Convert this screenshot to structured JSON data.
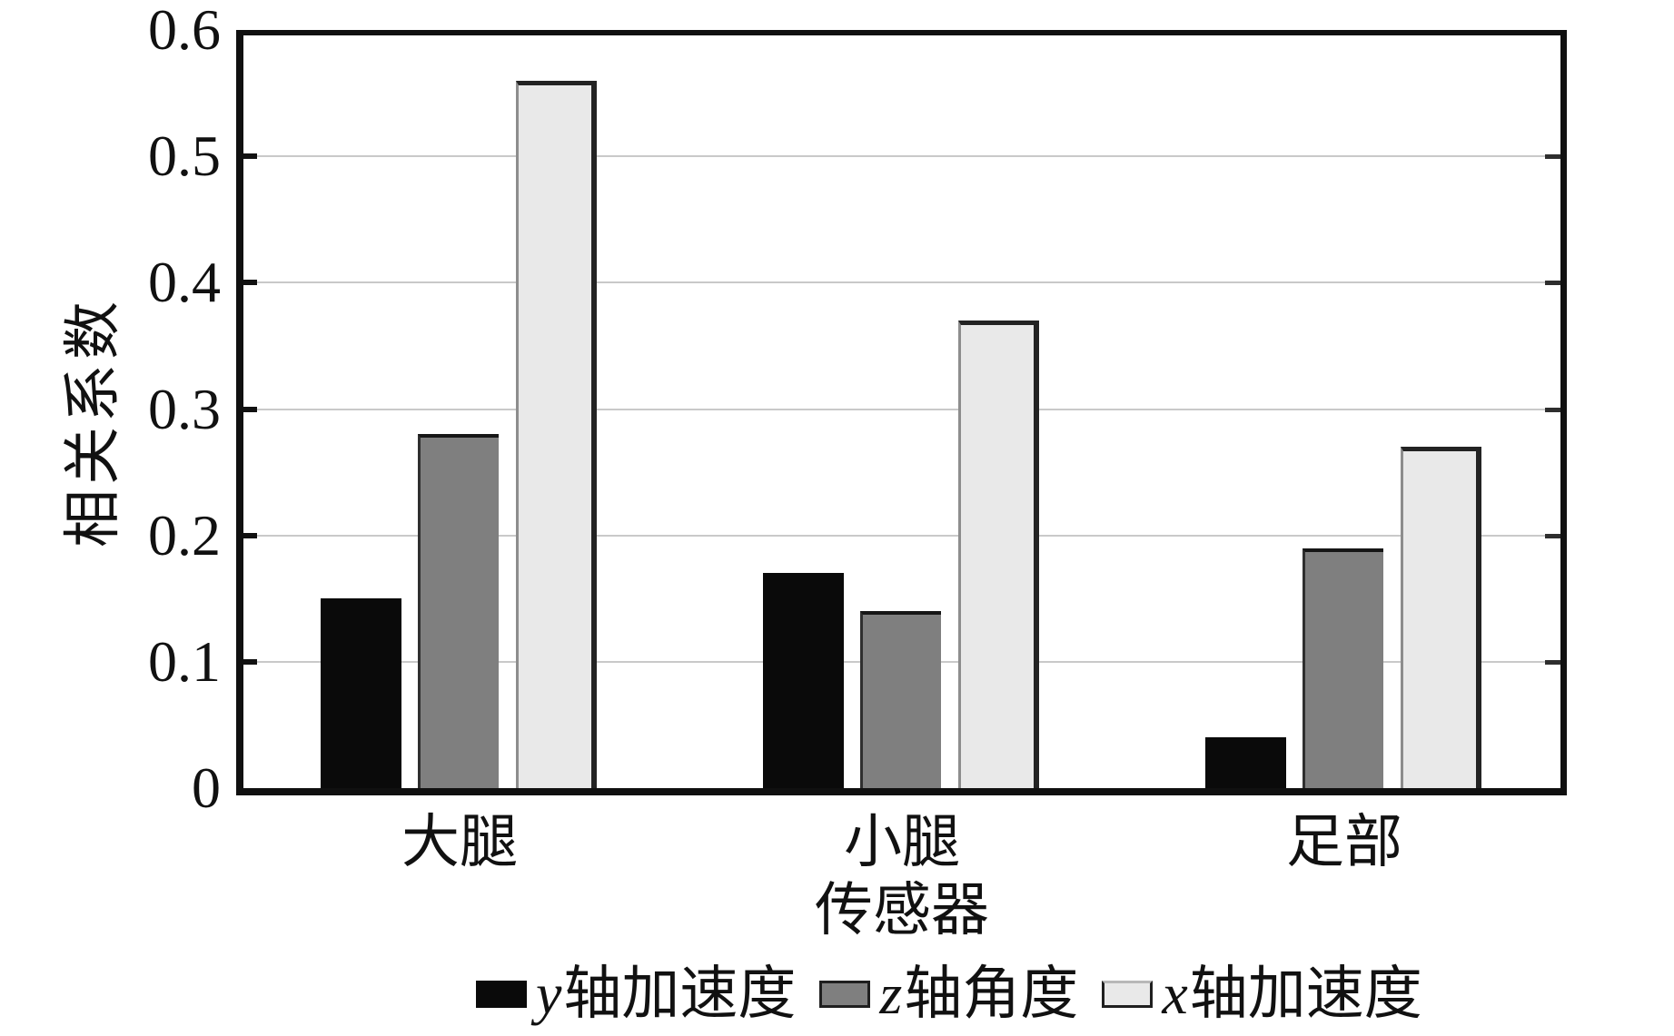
{
  "chart_data": {
    "type": "bar",
    "title": "",
    "ylabel": "相关系数",
    "xlabel": "传感器",
    "categories": [
      "大腿",
      "小腿",
      "足部"
    ],
    "series": [
      {
        "name": "y轴加速度",
        "var": "y",
        "rest": "轴加速度",
        "color": "#0a0a0a",
        "values": [
          0.15,
          0.17,
          0.04
        ]
      },
      {
        "name": "z轴角度",
        "var": "z",
        "rest": "轴角度",
        "color": "#7f7f7f",
        "values": [
          0.28,
          0.14,
          0.19
        ]
      },
      {
        "name": "x轴加速度",
        "var": "x",
        "rest": "轴加速度",
        "color": "#e9e9e9",
        "values": [
          0.56,
          0.37,
          0.27
        ]
      }
    ],
    "ylim": [
      0,
      0.6
    ],
    "y_ticks": [
      {
        "value": 0,
        "label": "0"
      },
      {
        "value": 0.1,
        "label": "0.1"
      },
      {
        "value": 0.2,
        "label": "0.2"
      },
      {
        "value": 0.3,
        "label": "0.3"
      },
      {
        "value": 0.4,
        "label": "0.4"
      },
      {
        "value": 0.5,
        "label": "0.5"
      },
      {
        "value": 0.6,
        "label": "0.6"
      }
    ],
    "grid": "horizontal",
    "legend_position": "bottom",
    "axis_color": "#101010",
    "gridline_color": "#c9c9c9"
  }
}
